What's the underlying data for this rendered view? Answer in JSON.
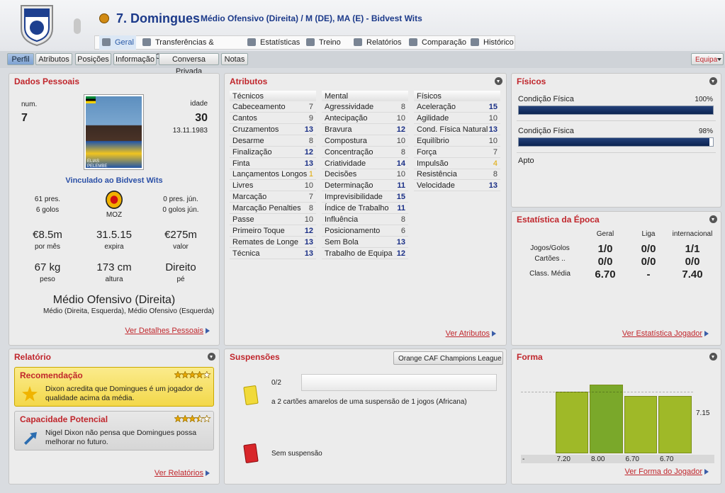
{
  "header": {
    "player": "7. Domingues",
    "subtitle": "Médio Ofensivo (Direita) / M (DE), MA (E) - Bidvest Wits"
  },
  "tabs": [
    "Geral",
    "Transferências & Contratos",
    "Estatísticas",
    "Treino",
    "Relatórios",
    "Comparação",
    "Histórico"
  ],
  "subtabs": [
    "Perfil",
    "Atributos",
    "Posições",
    "Informação",
    "Conversa Privada",
    "Notas"
  ],
  "squad_button": "Equipa",
  "dados_pessoais": {
    "title": "Dados Pessoais",
    "num_label": "num.",
    "num": "7",
    "age_label": "idade",
    "age": "30",
    "birth": "13.11.1983",
    "photo_caption": "ELIAS PELEMBE",
    "contract": "Vinculado ao Bidvest Wits",
    "apps": "61 pres.",
    "goals": "6 golos",
    "nation": "MOZ",
    "youth_apps": "0 pres. jún.",
    "youth_goals": "0 golos jún.",
    "stats": [
      {
        "value": "€8.5m",
        "label": "por mês"
      },
      {
        "value": "31.5.15",
        "label": "expira"
      },
      {
        "value": "€275m",
        "label": "valor"
      },
      {
        "value": "67 kg",
        "label": "peso"
      },
      {
        "value": "173 cm",
        "label": "altura"
      },
      {
        "value": "Direito",
        "label": "pé"
      }
    ],
    "position": "Médio Ofensivo (Direita)",
    "other_positions": "Médio (Direita, Esquerda), Médio Ofensivo (Esquerda)",
    "link": "Ver Detalhes Pessoais"
  },
  "atributos": {
    "title": "Atributos",
    "link": "Ver Atributos",
    "columns": [
      {
        "title": "Técnicos",
        "items": [
          {
            "name": "Cabeceamento",
            "value": 7
          },
          {
            "name": "Cantos",
            "value": 9
          },
          {
            "name": "Cruzamentos",
            "value": 13
          },
          {
            "name": "Desarme",
            "value": 8
          },
          {
            "name": "Finalização",
            "value": 12
          },
          {
            "name": "Finta",
            "value": 13
          },
          {
            "name": "Lançamentos Longos",
            "value": 1
          },
          {
            "name": "Livres",
            "value": 10
          },
          {
            "name": "Marcação",
            "value": 7
          },
          {
            "name": "Marcação Penalties",
            "value": 8
          },
          {
            "name": "Passe",
            "value": 10
          },
          {
            "name": "Primeiro Toque",
            "value": 12
          },
          {
            "name": "Remates de Longe",
            "value": 13
          },
          {
            "name": "Técnica",
            "value": 13
          }
        ]
      },
      {
        "title": "Mental",
        "items": [
          {
            "name": "Agressividade",
            "value": 8
          },
          {
            "name": "Antecipação",
            "value": 10
          },
          {
            "name": "Bravura",
            "value": 12
          },
          {
            "name": "Compostura",
            "value": 10
          },
          {
            "name": "Concentração",
            "value": 8
          },
          {
            "name": "Criatividade",
            "value": 14
          },
          {
            "name": "Decisões",
            "value": 10
          },
          {
            "name": "Determinação",
            "value": 11
          },
          {
            "name": "Imprevisibilidade",
            "value": 15
          },
          {
            "name": "Índice de Trabalho",
            "value": 11
          },
          {
            "name": "Influência",
            "value": 8
          },
          {
            "name": "Posicionamento",
            "value": 6
          },
          {
            "name": "Sem Bola",
            "value": 13
          },
          {
            "name": "Trabalho de Equipa",
            "value": 12
          }
        ]
      },
      {
        "title": "Físicos",
        "items": [
          {
            "name": "Aceleração",
            "value": 15
          },
          {
            "name": "Agilidade",
            "value": 10
          },
          {
            "name": "Cond. Física Natural",
            "value": 13
          },
          {
            "name": "Equilíbrio",
            "value": 10
          },
          {
            "name": "Força",
            "value": 7
          },
          {
            "name": "Impulsão",
            "value": 4
          },
          {
            "name": "Resistência",
            "value": 8
          },
          {
            "name": "Velocidade",
            "value": 13
          }
        ]
      }
    ]
  },
  "fisicos": {
    "title": "Físicos",
    "items": [
      {
        "label": "Condição Física",
        "value": 100,
        "value_label": "100%"
      },
      {
        "label": "Condição Física",
        "value": 98,
        "value_label": "98%"
      }
    ],
    "status": "Apto"
  },
  "estatistica": {
    "title": "Estatística da Época",
    "columns": [
      "Geral",
      "Liga",
      "internacional"
    ],
    "rows": [
      {
        "label": "Jogos/Golos",
        "values": [
          "1/0",
          "0/0",
          "1/1"
        ]
      },
      {
        "label": "Cartões ..",
        "values": [
          "0/0",
          "0/0",
          "0/0"
        ]
      },
      {
        "label": "Class. Média",
        "values": [
          "6.70",
          "-",
          "7.40"
        ]
      }
    ],
    "link": "Ver Estatística Jogador"
  },
  "relatorio": {
    "title": "Relatório",
    "items": [
      {
        "title": "Recomendação",
        "stars": 4,
        "text": "Dixon acredita que Domingues é um jogador de qualidade acima da média."
      },
      {
        "title": "Capacidade Potencial",
        "stars": 3.5,
        "text": "Nigel Dixon não pensa que Domingues possa melhorar no futuro."
      }
    ],
    "link": "Ver Relatórios"
  },
  "suspensoes": {
    "title": "Suspensões",
    "competition": "Orange CAF Champions League",
    "yellow_count": "0/2",
    "yellow_text": "a 2 cartões amarelos de uma suspensão de 1 jogos (Africana)",
    "red_text": "Sem suspensão"
  },
  "forma": {
    "title": "Forma",
    "values": [
      null,
      7.2,
      8.0,
      6.7,
      6.7
    ],
    "value_labels": [
      "-",
      "7.20",
      "8.00",
      "6.70",
      "6.70"
    ],
    "average": 7.15,
    "link": "Ver Forma do Jogador"
  }
}
